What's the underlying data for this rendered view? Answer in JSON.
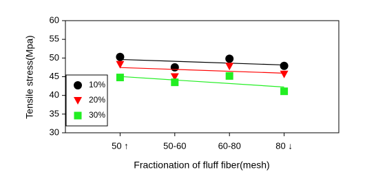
{
  "chart_data": {
    "type": "scatter",
    "x_label": "Fractionation of fluff fiber(mesh)",
    "y_label": "Tensile stress(Mpa)",
    "categories": [
      "50 ↑",
      "50-60",
      "60-80",
      "80 ↓"
    ],
    "series": [
      {
        "name": "10%",
        "color": "#000000",
        "marker": "circle",
        "values": [
          50.3,
          47.5,
          49.8,
          47.9
        ]
      },
      {
        "name": "20%",
        "color": "#ff0000",
        "marker": "triangle-down",
        "values": [
          48.3,
          45.0,
          47.8,
          45.7
        ]
      },
      {
        "name": "30%",
        "color": "#22ee22",
        "marker": "square",
        "values": [
          44.8,
          43.5,
          45.2,
          41.1
        ]
      }
    ],
    "trend_lines": true,
    "ylim": [
      30,
      60
    ],
    "yticks": [
      30,
      35,
      40,
      45,
      50,
      55,
      60
    ],
    "legend": "lower left"
  }
}
